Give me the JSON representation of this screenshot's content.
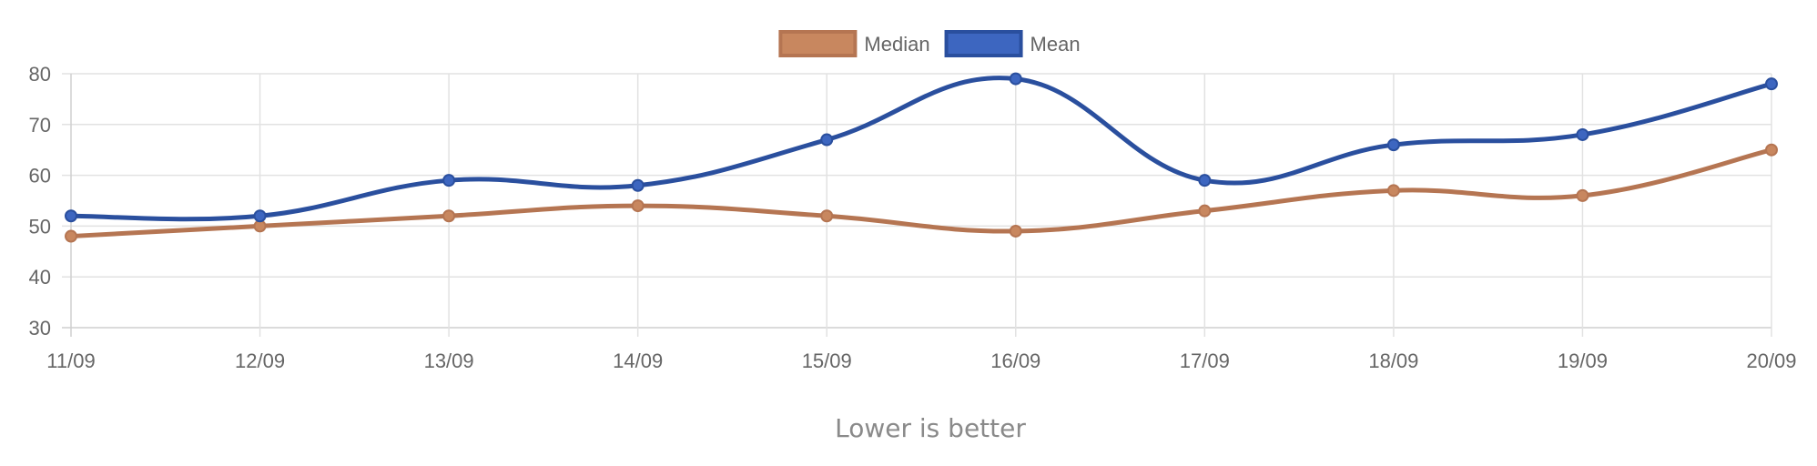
{
  "chart_data": {
    "type": "line",
    "categories": [
      "11/09",
      "12/09",
      "13/09",
      "14/09",
      "15/09",
      "16/09",
      "17/09",
      "18/09",
      "19/09",
      "20/09"
    ],
    "series": [
      {
        "name": "Median",
        "values": [
          48,
          50,
          52,
          54,
          52,
          49,
          53,
          57,
          56,
          65
        ],
        "color": "#b57552",
        "fill": "#c8875f"
      },
      {
        "name": "Mean",
        "values": [
          52,
          52,
          59,
          58,
          67,
          79,
          59,
          66,
          68,
          78
        ],
        "color": "#2a4f9e",
        "fill": "#3d66c0"
      }
    ],
    "ylim": [
      30,
      80
    ],
    "yticks": [
      30,
      40,
      50,
      60,
      70,
      80
    ],
    "grid": true,
    "legend_position": "top-center",
    "note": "Lower is better",
    "colors": {
      "grid": "#e2e2e2",
      "axis": "#cfcfcf",
      "tick_text": "#666666",
      "note_text": "#8a8a8a"
    }
  }
}
